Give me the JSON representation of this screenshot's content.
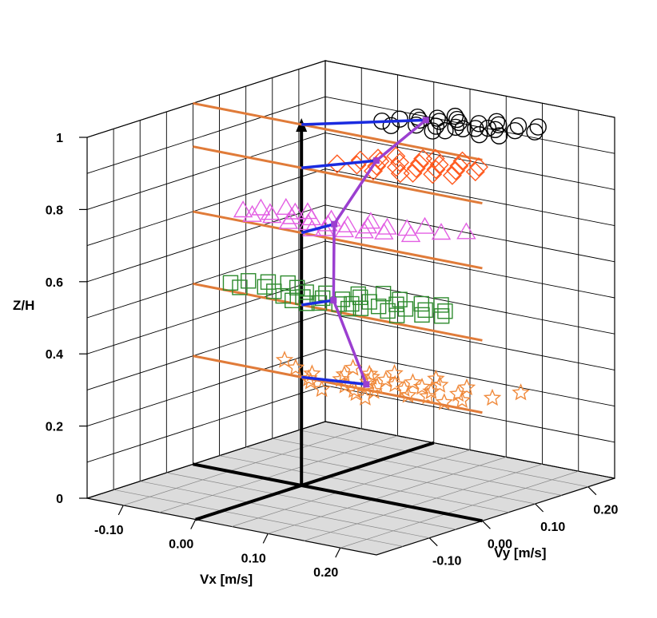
{
  "chart_data": {
    "type": "scatter",
    "projection": "3d",
    "xlabel": "Vx [m/s]",
    "ylabel": "Vy [m/s]",
    "zlabel": "Z/H",
    "xlim": [
      -0.15,
      0.25
    ],
    "ylim": [
      -0.2,
      0.25
    ],
    "zlim": [
      0,
      1
    ],
    "x_ticks": [
      "-0.10",
      "0.00",
      "0.10",
      "0.20"
    ],
    "y_ticks": [
      "-0.10",
      "0.00",
      "0.10",
      "0.20"
    ],
    "z_ticks": [
      "0",
      "0.2",
      "0.4",
      "0.6",
      "0.8",
      "1"
    ],
    "grid": true,
    "colors": {
      "profile_line": "#9b3fd0",
      "mean_arrow": "#1a2be0",
      "reference_line": "#e07b39",
      "floor": "#dcdcdc"
    },
    "series": [
      {
        "marker": "star",
        "color": "#f08a3c",
        "z": 0.3,
        "mean": [
          0.075,
          0.02
        ],
        "points": [
          [
            -0.06,
            0.05
          ],
          [
            -0.03,
            0.03
          ],
          [
            0.0,
            0.02
          ],
          [
            0.01,
            0.0
          ],
          [
            0.02,
            -0.01
          ],
          [
            0.03,
            0.04
          ],
          [
            0.04,
            0.02
          ],
          [
            0.05,
            0.06
          ],
          [
            0.06,
            0.0
          ],
          [
            0.07,
            0.03
          ],
          [
            0.08,
            0.05
          ],
          [
            0.08,
            -0.01
          ],
          [
            0.09,
            0.02
          ],
          [
            0.1,
            0.04
          ],
          [
            0.1,
            0.0
          ],
          [
            0.11,
            0.06
          ],
          [
            0.12,
            0.03
          ],
          [
            0.13,
            0.05
          ],
          [
            0.14,
            0.01
          ],
          [
            0.15,
            0.04
          ],
          [
            0.16,
            0.02
          ],
          [
            0.18,
            0.05
          ],
          [
            0.2,
            0.03
          ],
          [
            0.22,
            0.06
          ],
          [
            0.23,
            0.1
          ],
          [
            0.05,
            -0.03
          ],
          [
            0.07,
            0.08
          ],
          [
            0.12,
            0.09
          ],
          [
            0.09,
            -0.02
          ],
          [
            0.17,
            0.08
          ],
          [
            0.02,
            0.07
          ],
          [
            0.11,
            -0.03
          ],
          [
            0.14,
            0.07
          ],
          [
            0.06,
            0.05
          ],
          [
            0.19,
            0.01
          ]
        ]
      },
      {
        "marker": "square",
        "color": "#2e8b2e",
        "z": 0.5,
        "mean": [
          0.015,
          0.04
        ],
        "points": [
          [
            -0.12,
            0.03
          ],
          [
            -0.11,
            0.05
          ],
          [
            -0.1,
            0.02
          ],
          [
            -0.09,
            0.06
          ],
          [
            -0.08,
            0.04
          ],
          [
            -0.06,
            0.03
          ],
          [
            -0.05,
            0.06
          ],
          [
            -0.04,
            0.02
          ],
          [
            -0.03,
            0.05
          ],
          [
            -0.02,
            0.03
          ],
          [
            -0.01,
            0.06
          ],
          [
            0.0,
            0.04
          ],
          [
            0.01,
            0.02
          ],
          [
            0.02,
            0.05
          ],
          [
            0.03,
            0.03
          ],
          [
            0.03,
            0.07
          ],
          [
            0.04,
            0.04
          ],
          [
            0.05,
            0.06
          ],
          [
            0.06,
            0.03
          ],
          [
            0.07,
            0.05
          ],
          [
            0.08,
            0.07
          ],
          [
            0.09,
            0.04
          ],
          [
            0.1,
            0.06
          ],
          [
            0.11,
            0.03
          ],
          [
            0.12,
            0.07
          ],
          [
            0.13,
            0.05
          ],
          [
            0.14,
            0.08
          ],
          [
            0.0,
            0.01
          ],
          [
            0.02,
            0.08
          ],
          [
            -0.07,
            0.07
          ],
          [
            0.05,
            0.02
          ],
          [
            0.1,
            0.09
          ],
          [
            -0.02,
            0.01
          ],
          [
            0.07,
            0.09
          ],
          [
            0.15,
            0.06
          ],
          [
            0.04,
            0.1
          ],
          [
            0.12,
            0.1
          ]
        ]
      },
      {
        "marker": "triangle",
        "color": "#e35fe3",
        "z": 0.7,
        "mean": [
          0.005,
          0.055
        ],
        "points": [
          [
            -0.11,
            0.04
          ],
          [
            -0.1,
            0.06
          ],
          [
            -0.09,
            0.03
          ],
          [
            -0.08,
            0.05
          ],
          [
            -0.07,
            0.04
          ],
          [
            -0.06,
            0.07
          ],
          [
            -0.05,
            0.05
          ],
          [
            -0.04,
            0.03
          ],
          [
            -0.03,
            0.06
          ],
          [
            -0.02,
            0.04
          ],
          [
            -0.01,
            0.07
          ],
          [
            0.0,
            0.05
          ],
          [
            0.01,
            0.03
          ],
          [
            0.02,
            0.06
          ],
          [
            0.03,
            0.04
          ],
          [
            0.04,
            0.07
          ],
          [
            0.05,
            0.05
          ],
          [
            0.06,
            0.08
          ],
          [
            0.07,
            0.06
          ],
          [
            0.08,
            0.09
          ],
          [
            0.1,
            0.07
          ],
          [
            0.12,
            0.1
          ],
          [
            0.14,
            0.12
          ],
          [
            -0.05,
            0.08
          ],
          [
            0.03,
            0.09
          ],
          [
            0.09,
            0.11
          ],
          [
            -0.08,
            0.08
          ],
          [
            0.0,
            0.02
          ]
        ]
      },
      {
        "marker": "diamond",
        "color": "#ff5a1f",
        "z": 0.88,
        "mean": [
          0.045,
          0.08
        ],
        "points": [
          [
            0.02,
            0.04
          ],
          [
            0.03,
            0.07
          ],
          [
            0.04,
            0.05
          ],
          [
            0.05,
            0.08
          ],
          [
            0.06,
            0.06
          ],
          [
            0.07,
            0.09
          ],
          [
            0.08,
            0.07
          ],
          [
            0.09,
            0.1
          ],
          [
            0.1,
            0.08
          ],
          [
            0.11,
            0.11
          ],
          [
            0.12,
            0.09
          ],
          [
            0.13,
            0.12
          ],
          [
            0.14,
            0.1
          ],
          [
            0.15,
            0.13
          ],
          [
            0.16,
            0.11
          ],
          [
            0.05,
            0.11
          ],
          [
            0.08,
            0.12
          ],
          [
            0.12,
            0.14
          ],
          [
            0.07,
            0.04
          ],
          [
            0.1,
            0.05
          ],
          [
            0.04,
            0.09
          ],
          [
            0.15,
            0.08
          ],
          [
            0.11,
            0.06
          ],
          [
            0.13,
            0.07
          ],
          [
            0.09,
            0.13
          ]
        ]
      },
      {
        "marker": "circle",
        "color": "#000000",
        "z": 1.0,
        "mean": [
          0.095,
          0.105
        ],
        "points": [
          [
            0.06,
            0.07
          ],
          [
            0.07,
            0.09
          ],
          [
            0.08,
            0.06
          ],
          [
            0.09,
            0.1
          ],
          [
            0.1,
            0.08
          ],
          [
            0.11,
            0.11
          ],
          [
            0.12,
            0.09
          ],
          [
            0.13,
            0.12
          ],
          [
            0.14,
            0.1
          ],
          [
            0.15,
            0.13
          ],
          [
            0.16,
            0.11
          ],
          [
            0.17,
            0.14
          ],
          [
            0.18,
            0.12
          ],
          [
            0.19,
            0.15
          ],
          [
            0.2,
            0.13
          ],
          [
            0.21,
            0.16
          ],
          [
            0.22,
            0.14
          ],
          [
            0.1,
            0.12
          ],
          [
            0.12,
            0.13
          ],
          [
            0.14,
            0.08
          ],
          [
            0.16,
            0.15
          ],
          [
            0.18,
            0.09
          ],
          [
            0.08,
            0.11
          ],
          [
            0.2,
            0.1
          ],
          [
            0.11,
            0.14
          ],
          [
            0.13,
            0.07
          ],
          [
            0.15,
            0.1
          ],
          [
            0.17,
            0.12
          ]
        ]
      }
    ]
  }
}
